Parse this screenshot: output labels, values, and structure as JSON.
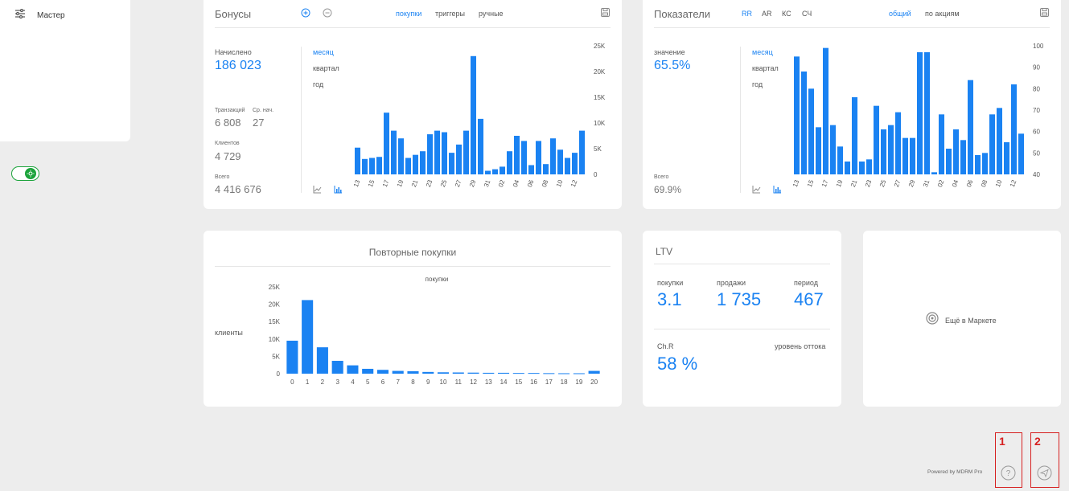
{
  "sidebar": {
    "master_label": "Мастер"
  },
  "bonuses": {
    "title": "Бонусы",
    "tabs": [
      "покупки",
      "триггеры",
      "ручные"
    ],
    "accrued_label": "Начислено",
    "accrued_value": "186 023",
    "transactions_label": "Транзакций",
    "transactions_value": "6 808",
    "avg_label": "Ср. нач.",
    "avg_value": "27",
    "clients_label": "Клиентов",
    "clients_value": "4 729",
    "total_label": "Всего",
    "total_value": "4 416 676",
    "periods": [
      "месяц",
      "квартал",
      "год"
    ]
  },
  "indicators": {
    "title": "Показатели",
    "metric_tabs": [
      "RR",
      "AR",
      "КС",
      "СЧ"
    ],
    "scope_tabs": [
      "общий",
      "по акциям"
    ],
    "value_label": "значение",
    "value": "65.5%",
    "total_label": "Всего",
    "total_value": "69.9%",
    "periods": [
      "месяц",
      "квартал",
      "год"
    ]
  },
  "repeat": {
    "title": "Повторные покупки"
  },
  "ltv": {
    "title": "LTV",
    "purchases_label": "покупки",
    "purchases_value": "3.1",
    "sales_label": "продажи",
    "sales_value": "1 735",
    "period_label": "период",
    "period_value": "467",
    "chr_label": "Ch.R",
    "chr_value": "58 %",
    "churn_label": "уровень оттока"
  },
  "market": {
    "label": "Ещё в Маркете"
  },
  "footer": {
    "powered": "Powered by MDRM Pro"
  },
  "markers": [
    "1",
    "2"
  ],
  "colors": {
    "accent": "#1a82f2",
    "toggle": "#1aa33a",
    "marker": "#d62020"
  },
  "chart_data": [
    {
      "type": "bar",
      "title": "",
      "categories": [
        "13",
        "14",
        "15",
        "16",
        "17",
        "18",
        "19",
        "20",
        "21",
        "22",
        "23",
        "24",
        "25",
        "26",
        "27",
        "28",
        "29",
        "30",
        "31",
        "01",
        "02",
        "03",
        "04",
        "05",
        "06",
        "07",
        "08",
        "09",
        "10",
        "11",
        "12",
        "13"
      ],
      "x_tick_labels": [
        "13",
        "15",
        "17",
        "19",
        "21",
        "23",
        "25",
        "27",
        "29",
        "31",
        "02",
        "04",
        "06",
        "08",
        "10",
        "12"
      ],
      "values": [
        5200,
        3000,
        3200,
        3400,
        12000,
        8500,
        7000,
        3200,
        3800,
        4500,
        7800,
        8500,
        8200,
        4200,
        5800,
        8500,
        23000,
        10800,
        700,
        1000,
        1500,
        4500,
        7500,
        6500,
        1800,
        6500,
        2000,
        7000,
        4800,
        3200,
        4200,
        8500
      ],
      "yticks": [
        "0",
        "5K",
        "10K",
        "15K",
        "20K",
        "25K"
      ],
      "ylim": [
        0,
        25000
      ]
    },
    {
      "type": "bar",
      "title": "",
      "categories": [
        "13",
        "14",
        "15",
        "16",
        "17",
        "18",
        "19",
        "20",
        "21",
        "22",
        "23",
        "24",
        "25",
        "26",
        "27",
        "28",
        "29",
        "30",
        "31",
        "01",
        "02",
        "03",
        "04",
        "05",
        "06",
        "07",
        "08",
        "09",
        "10",
        "11",
        "12",
        "13"
      ],
      "x_tick_labels": [
        "13",
        "15",
        "17",
        "19",
        "21",
        "23",
        "25",
        "27",
        "29",
        "31",
        "02",
        "04",
        "06",
        "08",
        "10",
        "12"
      ],
      "values": [
        95,
        88,
        80,
        62,
        99,
        63,
        53,
        46,
        76,
        46,
        47,
        72,
        61,
        63,
        69,
        57,
        57,
        97,
        97,
        41,
        68,
        52,
        61,
        56,
        84,
        49,
        50,
        68,
        71,
        55,
        82,
        59
      ],
      "yticks": [
        "40",
        "50",
        "60",
        "70",
        "80",
        "90",
        "100"
      ],
      "ylim": [
        40,
        100
      ]
    },
    {
      "type": "bar",
      "title": "",
      "xlabel": "",
      "ylabel": "клиенты",
      "top_label": "покупки",
      "categories": [
        "0",
        "1",
        "2",
        "3",
        "4",
        "5",
        "6",
        "7",
        "8",
        "9",
        "10",
        "11",
        "12",
        "13",
        "14",
        "15",
        "16",
        "17",
        "18",
        "19",
        "20"
      ],
      "values": [
        9500,
        21200,
        7600,
        3700,
        2400,
        1400,
        1100,
        800,
        700,
        500,
        400,
        350,
        300,
        250,
        250,
        200,
        200,
        150,
        120,
        120,
        800
      ],
      "yticks": [
        "0",
        "5K",
        "10K",
        "15K",
        "20K",
        "25K"
      ],
      "ylim": [
        0,
        25000
      ]
    }
  ]
}
